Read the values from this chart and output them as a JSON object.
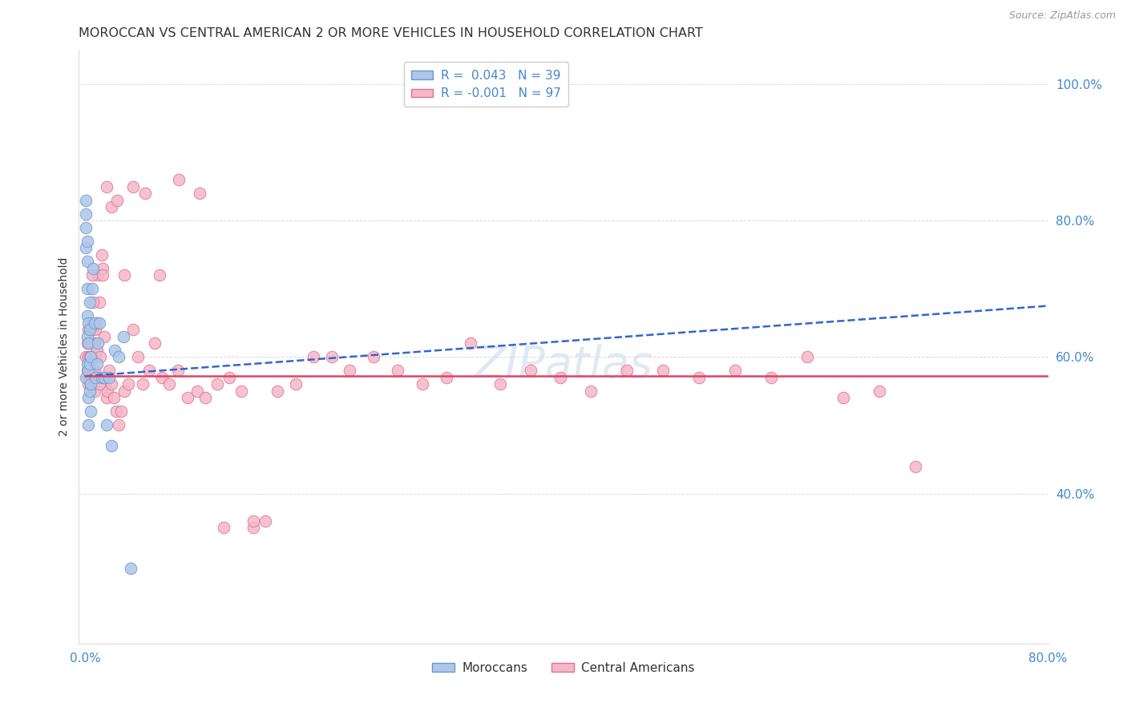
{
  "title": "MOROCCAN VS CENTRAL AMERICAN 2 OR MORE VEHICLES IN HOUSEHOLD CORRELATION CHART",
  "source": "Source: ZipAtlas.com",
  "legend_moroccan": "R =  0.043   N = 39",
  "legend_central": "R = -0.001   N = 97",
  "legend_label1": "Moroccans",
  "legend_label2": "Central Americans",
  "moroccan_color": "#aec6e8",
  "central_color": "#f5b8c8",
  "moroccan_edge": "#6699cc",
  "central_edge": "#e07090",
  "trend_moroccan_color": "#3366cc",
  "trend_central_color": "#dd4466",
  "background_color": "#ffffff",
  "grid_color": "#cccccc",
  "title_color": "#333333",
  "axis_color": "#4488cc",
  "moroccan_x": [
    0.001,
    0.001,
    0.001,
    0.001,
    0.001,
    0.002,
    0.002,
    0.002,
    0.002,
    0.002,
    0.002,
    0.003,
    0.003,
    0.003,
    0.003,
    0.003,
    0.004,
    0.004,
    0.004,
    0.004,
    0.005,
    0.005,
    0.005,
    0.006,
    0.007,
    0.008,
    0.009,
    0.01,
    0.011,
    0.012,
    0.014,
    0.016,
    0.018,
    0.02,
    0.022,
    0.025,
    0.028,
    0.032,
    0.038
  ],
  "moroccan_y": [
    0.57,
    0.79,
    0.76,
    0.81,
    0.83,
    0.77,
    0.74,
    0.7,
    0.66,
    0.63,
    0.59,
    0.65,
    0.62,
    0.58,
    0.54,
    0.5,
    0.68,
    0.64,
    0.59,
    0.55,
    0.6,
    0.56,
    0.52,
    0.7,
    0.73,
    0.65,
    0.57,
    0.59,
    0.62,
    0.65,
    0.57,
    0.57,
    0.5,
    0.57,
    0.47,
    0.61,
    0.6,
    0.63,
    0.29
  ],
  "central_x": [
    0.001,
    0.002,
    0.002,
    0.003,
    0.003,
    0.003,
    0.004,
    0.004,
    0.005,
    0.005,
    0.005,
    0.006,
    0.006,
    0.007,
    0.007,
    0.008,
    0.008,
    0.009,
    0.009,
    0.01,
    0.01,
    0.011,
    0.012,
    0.013,
    0.014,
    0.015,
    0.016,
    0.017,
    0.018,
    0.019,
    0.02,
    0.022,
    0.024,
    0.026,
    0.028,
    0.03,
    0.033,
    0.036,
    0.04,
    0.044,
    0.048,
    0.053,
    0.058,
    0.064,
    0.07,
    0.077,
    0.085,
    0.093,
    0.1,
    0.11,
    0.12,
    0.13,
    0.14,
    0.15,
    0.16,
    0.175,
    0.19,
    0.205,
    0.22,
    0.24,
    0.26,
    0.28,
    0.3,
    0.32,
    0.345,
    0.37,
    0.395,
    0.42,
    0.45,
    0.48,
    0.51,
    0.54,
    0.57,
    0.6,
    0.63,
    0.66,
    0.69,
    0.003,
    0.004,
    0.005,
    0.006,
    0.007,
    0.008,
    0.01,
    0.012,
    0.015,
    0.018,
    0.022,
    0.027,
    0.033,
    0.04,
    0.05,
    0.062,
    0.078,
    0.095,
    0.115,
    0.14
  ],
  "central_y": [
    0.6,
    0.62,
    0.58,
    0.64,
    0.6,
    0.56,
    0.62,
    0.58,
    0.64,
    0.6,
    0.56,
    0.62,
    0.58,
    0.64,
    0.6,
    0.62,
    0.58,
    0.64,
    0.6,
    0.65,
    0.61,
    0.72,
    0.68,
    0.6,
    0.75,
    0.73,
    0.63,
    0.56,
    0.54,
    0.55,
    0.58,
    0.56,
    0.54,
    0.52,
    0.5,
    0.52,
    0.55,
    0.56,
    0.64,
    0.6,
    0.56,
    0.58,
    0.62,
    0.57,
    0.56,
    0.58,
    0.54,
    0.55,
    0.54,
    0.56,
    0.57,
    0.55,
    0.35,
    0.36,
    0.55,
    0.56,
    0.6,
    0.6,
    0.58,
    0.6,
    0.58,
    0.56,
    0.57,
    0.62,
    0.56,
    0.58,
    0.57,
    0.55,
    0.58,
    0.58,
    0.57,
    0.58,
    0.57,
    0.6,
    0.54,
    0.55,
    0.44,
    0.57,
    0.6,
    0.65,
    0.72,
    0.68,
    0.55,
    0.57,
    0.56,
    0.72,
    0.85,
    0.82,
    0.83,
    0.72,
    0.85,
    0.84,
    0.72,
    0.86,
    0.84,
    0.35,
    0.36
  ],
  "xlim": [
    -0.005,
    0.8
  ],
  "ylim": [
    0.18,
    1.05
  ],
  "trend_moroccan_x0": 0.0,
  "trend_moroccan_x1": 0.8,
  "trend_moroccan_y0": 0.572,
  "trend_moroccan_y1": 0.675,
  "trend_central_x0": 0.0,
  "trend_central_x1": 0.8,
  "trend_central_y0": 0.572,
  "trend_central_y1": 0.572,
  "figsize": [
    14.06,
    8.92
  ],
  "dpi": 100
}
